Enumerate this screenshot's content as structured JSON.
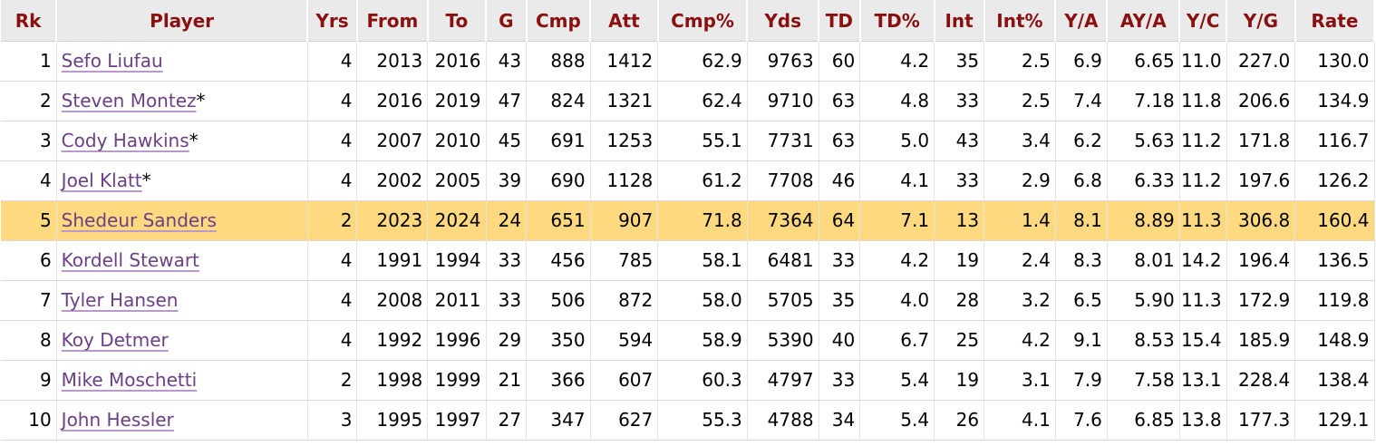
{
  "columns": [
    "Rk",
    "Player",
    "Yrs",
    "From",
    "To",
    "G",
    "Cmp",
    "Att",
    "Cmp%",
    "Yds",
    "TD",
    "TD%",
    "Int",
    "Int%",
    "Y/A",
    "AY/A",
    "Y/C",
    "Y/G",
    "Rate"
  ],
  "highlight_color": "#ffd980",
  "link_color": "#6b3f86",
  "header_color": "#8b0f0f",
  "rows": [
    {
      "rk": "1",
      "player": "Sefo Liufau",
      "star": "",
      "yrs": "4",
      "from": "2013",
      "to": "2016",
      "g": "43",
      "cmp": "888",
      "att": "1412",
      "cmp_pct": "62.9",
      "yds": "9763",
      "td": "60",
      "td_pct": "4.2",
      "int": "35",
      "int_pct": "2.5",
      "ya": "6.9",
      "aya": "6.65",
      "yc": "11.0",
      "yg": "227.0",
      "rate": "130.0",
      "highlight": false
    },
    {
      "rk": "2",
      "player": "Steven Montez",
      "star": "*",
      "yrs": "4",
      "from": "2016",
      "to": "2019",
      "g": "47",
      "cmp": "824",
      "att": "1321",
      "cmp_pct": "62.4",
      "yds": "9710",
      "td": "63",
      "td_pct": "4.8",
      "int": "33",
      "int_pct": "2.5",
      "ya": "7.4",
      "aya": "7.18",
      "yc": "11.8",
      "yg": "206.6",
      "rate": "134.9",
      "highlight": false
    },
    {
      "rk": "3",
      "player": "Cody Hawkins",
      "star": "*",
      "yrs": "4",
      "from": "2007",
      "to": "2010",
      "g": "45",
      "cmp": "691",
      "att": "1253",
      "cmp_pct": "55.1",
      "yds": "7731",
      "td": "63",
      "td_pct": "5.0",
      "int": "43",
      "int_pct": "3.4",
      "ya": "6.2",
      "aya": "5.63",
      "yc": "11.2",
      "yg": "171.8",
      "rate": "116.7",
      "highlight": false
    },
    {
      "rk": "4",
      "player": "Joel Klatt",
      "star": "*",
      "yrs": "4",
      "from": "2002",
      "to": "2005",
      "g": "39",
      "cmp": "690",
      "att": "1128",
      "cmp_pct": "61.2",
      "yds": "7708",
      "td": "46",
      "td_pct": "4.1",
      "int": "33",
      "int_pct": "2.9",
      "ya": "6.8",
      "aya": "6.33",
      "yc": "11.2",
      "yg": "197.6",
      "rate": "126.2",
      "highlight": false
    },
    {
      "rk": "5",
      "player": "Shedeur Sanders",
      "star": "",
      "yrs": "2",
      "from": "2023",
      "to": "2024",
      "g": "24",
      "cmp": "651",
      "att": "907",
      "cmp_pct": "71.8",
      "yds": "7364",
      "td": "64",
      "td_pct": "7.1",
      "int": "13",
      "int_pct": "1.4",
      "ya": "8.1",
      "aya": "8.89",
      "yc": "11.3",
      "yg": "306.8",
      "rate": "160.4",
      "highlight": true
    },
    {
      "rk": "6",
      "player": "Kordell Stewart",
      "star": "",
      "yrs": "4",
      "from": "1991",
      "to": "1994",
      "g": "33",
      "cmp": "456",
      "att": "785",
      "cmp_pct": "58.1",
      "yds": "6481",
      "td": "33",
      "td_pct": "4.2",
      "int": "19",
      "int_pct": "2.4",
      "ya": "8.3",
      "aya": "8.01",
      "yc": "14.2",
      "yg": "196.4",
      "rate": "136.5",
      "highlight": false
    },
    {
      "rk": "7",
      "player": "Tyler Hansen",
      "star": "",
      "yrs": "4",
      "from": "2008",
      "to": "2011",
      "g": "33",
      "cmp": "506",
      "att": "872",
      "cmp_pct": "58.0",
      "yds": "5705",
      "td": "35",
      "td_pct": "4.0",
      "int": "28",
      "int_pct": "3.2",
      "ya": "6.5",
      "aya": "5.90",
      "yc": "11.3",
      "yg": "172.9",
      "rate": "119.8",
      "highlight": false
    },
    {
      "rk": "8",
      "player": "Koy Detmer",
      "star": "",
      "yrs": "4",
      "from": "1992",
      "to": "1996",
      "g": "29",
      "cmp": "350",
      "att": "594",
      "cmp_pct": "58.9",
      "yds": "5390",
      "td": "40",
      "td_pct": "6.7",
      "int": "25",
      "int_pct": "4.2",
      "ya": "9.1",
      "aya": "8.53",
      "yc": "15.4",
      "yg": "185.9",
      "rate": "148.9",
      "highlight": false
    },
    {
      "rk": "9",
      "player": "Mike Moschetti",
      "star": "",
      "yrs": "2",
      "from": "1998",
      "to": "1999",
      "g": "21",
      "cmp": "366",
      "att": "607",
      "cmp_pct": "60.3",
      "yds": "4797",
      "td": "33",
      "td_pct": "5.4",
      "int": "19",
      "int_pct": "3.1",
      "ya": "7.9",
      "aya": "7.58",
      "yc": "13.1",
      "yg": "228.4",
      "rate": "138.4",
      "highlight": false
    },
    {
      "rk": "10",
      "player": "John Hessler",
      "star": "",
      "yrs": "3",
      "from": "1995",
      "to": "1997",
      "g": "27",
      "cmp": "347",
      "att": "627",
      "cmp_pct": "55.3",
      "yds": "4788",
      "td": "34",
      "td_pct": "5.4",
      "int": "26",
      "int_pct": "4.1",
      "ya": "7.6",
      "aya": "6.85",
      "yc": "13.8",
      "yg": "177.3",
      "rate": "129.1",
      "highlight": false
    }
  ]
}
